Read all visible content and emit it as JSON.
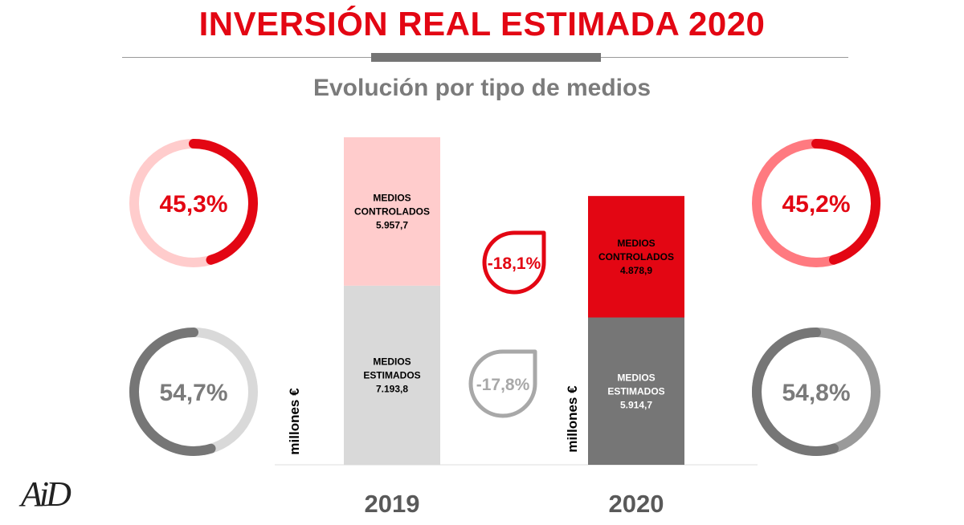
{
  "header": {
    "title": "INVERSIÓN REAL ESTIMADA 2020",
    "subtitle": "Evolución por tipo de medios"
  },
  "logo": {
    "text": "AiD"
  },
  "colors": {
    "red": "#e30613",
    "light_red": "#ffcccc",
    "gray_dark": "#767676",
    "gray_light": "#d9d9d9",
    "text_gray": "#7b7b7b"
  },
  "chart_data": {
    "type": "bar",
    "stacked": true,
    "categories": [
      "2019",
      "2020"
    ],
    "series": [
      {
        "name": "MEDIOS ESTIMADOS",
        "values": [
          7193.8,
          5914.7
        ],
        "labels": [
          "7.193,8",
          "5.914,7"
        ]
      },
      {
        "name": "MEDIOS CONTROLADOS",
        "values": [
          5957.7,
          4878.9
        ],
        "labels": [
          "5.957,7",
          "4.878,9"
        ]
      }
    ],
    "ylabel": "millones €",
    "ylim": [
      0,
      13151.5
    ],
    "segment_label_lines": {
      "MEDIOS CONTROLADOS": [
        "MEDIOS",
        "CONTROLADOS"
      ],
      "MEDIOS ESTIMADOS": [
        "MEDIOS",
        "ESTIMADOS"
      ]
    },
    "changes": [
      {
        "series": "MEDIOS CONTROLADOS",
        "label": "-18,1%"
      },
      {
        "series": "MEDIOS ESTIMADOS",
        "label": "-17,8%"
      }
    ],
    "shares": [
      {
        "year": "2019",
        "series": "MEDIOS CONTROLADOS",
        "value": 45.3,
        "label": "45,3%"
      },
      {
        "year": "2019",
        "series": "MEDIOS ESTIMADOS",
        "value": 54.7,
        "label": "54,7%"
      },
      {
        "year": "2020",
        "series": "MEDIOS CONTROLADOS",
        "value": 45.2,
        "label": "45,2%"
      },
      {
        "year": "2020",
        "series": "MEDIOS ESTIMADOS",
        "value": 54.8,
        "label": "54,8%"
      }
    ]
  }
}
